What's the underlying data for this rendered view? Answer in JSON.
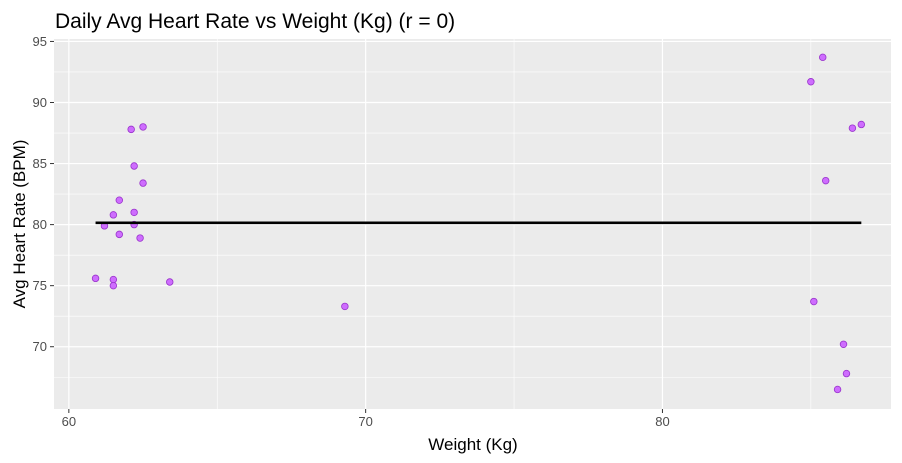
{
  "chart_data": {
    "type": "scatter",
    "title": "Daily Avg Heart Rate vs Weight (Kg) (r = 0)",
    "xlabel": "Weight (Kg)",
    "ylabel": "Avg Heart Rate (BPM)",
    "xlim": [
      59.5,
      87.7
    ],
    "ylim": [
      64.9,
      95.2
    ],
    "x_ticks": [
      60,
      70,
      80
    ],
    "y_ticks": [
      70,
      75,
      80,
      85,
      90,
      95
    ],
    "grid": true,
    "point_color": "#cc66ff",
    "point_stroke": "#9933cc",
    "line_color": "#000000",
    "background": "#ebebeb",
    "points": [
      {
        "x": 60.9,
        "y": 75.6
      },
      {
        "x": 61.2,
        "y": 79.9
      },
      {
        "x": 61.5,
        "y": 80.8
      },
      {
        "x": 61.5,
        "y": 75.5
      },
      {
        "x": 61.5,
        "y": 75.0
      },
      {
        "x": 61.7,
        "y": 82.0
      },
      {
        "x": 61.7,
        "y": 79.2
      },
      {
        "x": 62.1,
        "y": 87.8
      },
      {
        "x": 62.2,
        "y": 84.8
      },
      {
        "x": 62.2,
        "y": 81.0
      },
      {
        "x": 62.2,
        "y": 80.0
      },
      {
        "x": 62.4,
        "y": 78.9
      },
      {
        "x": 62.5,
        "y": 88.0
      },
      {
        "x": 62.5,
        "y": 83.4
      },
      {
        "x": 63.4,
        "y": 75.3
      },
      {
        "x": 69.3,
        "y": 73.3
      },
      {
        "x": 85.0,
        "y": 91.7
      },
      {
        "x": 85.1,
        "y": 73.7
      },
      {
        "x": 85.4,
        "y": 93.7
      },
      {
        "x": 85.5,
        "y": 83.6
      },
      {
        "x": 85.9,
        "y": 66.5
      },
      {
        "x": 86.1,
        "y": 70.2
      },
      {
        "x": 86.2,
        "y": 67.8
      },
      {
        "x": 86.4,
        "y": 87.9
      },
      {
        "x": 86.7,
        "y": 88.2
      }
    ],
    "trend_line": {
      "x": [
        60.9,
        86.7
      ],
      "y": [
        80.15,
        80.15
      ]
    }
  }
}
